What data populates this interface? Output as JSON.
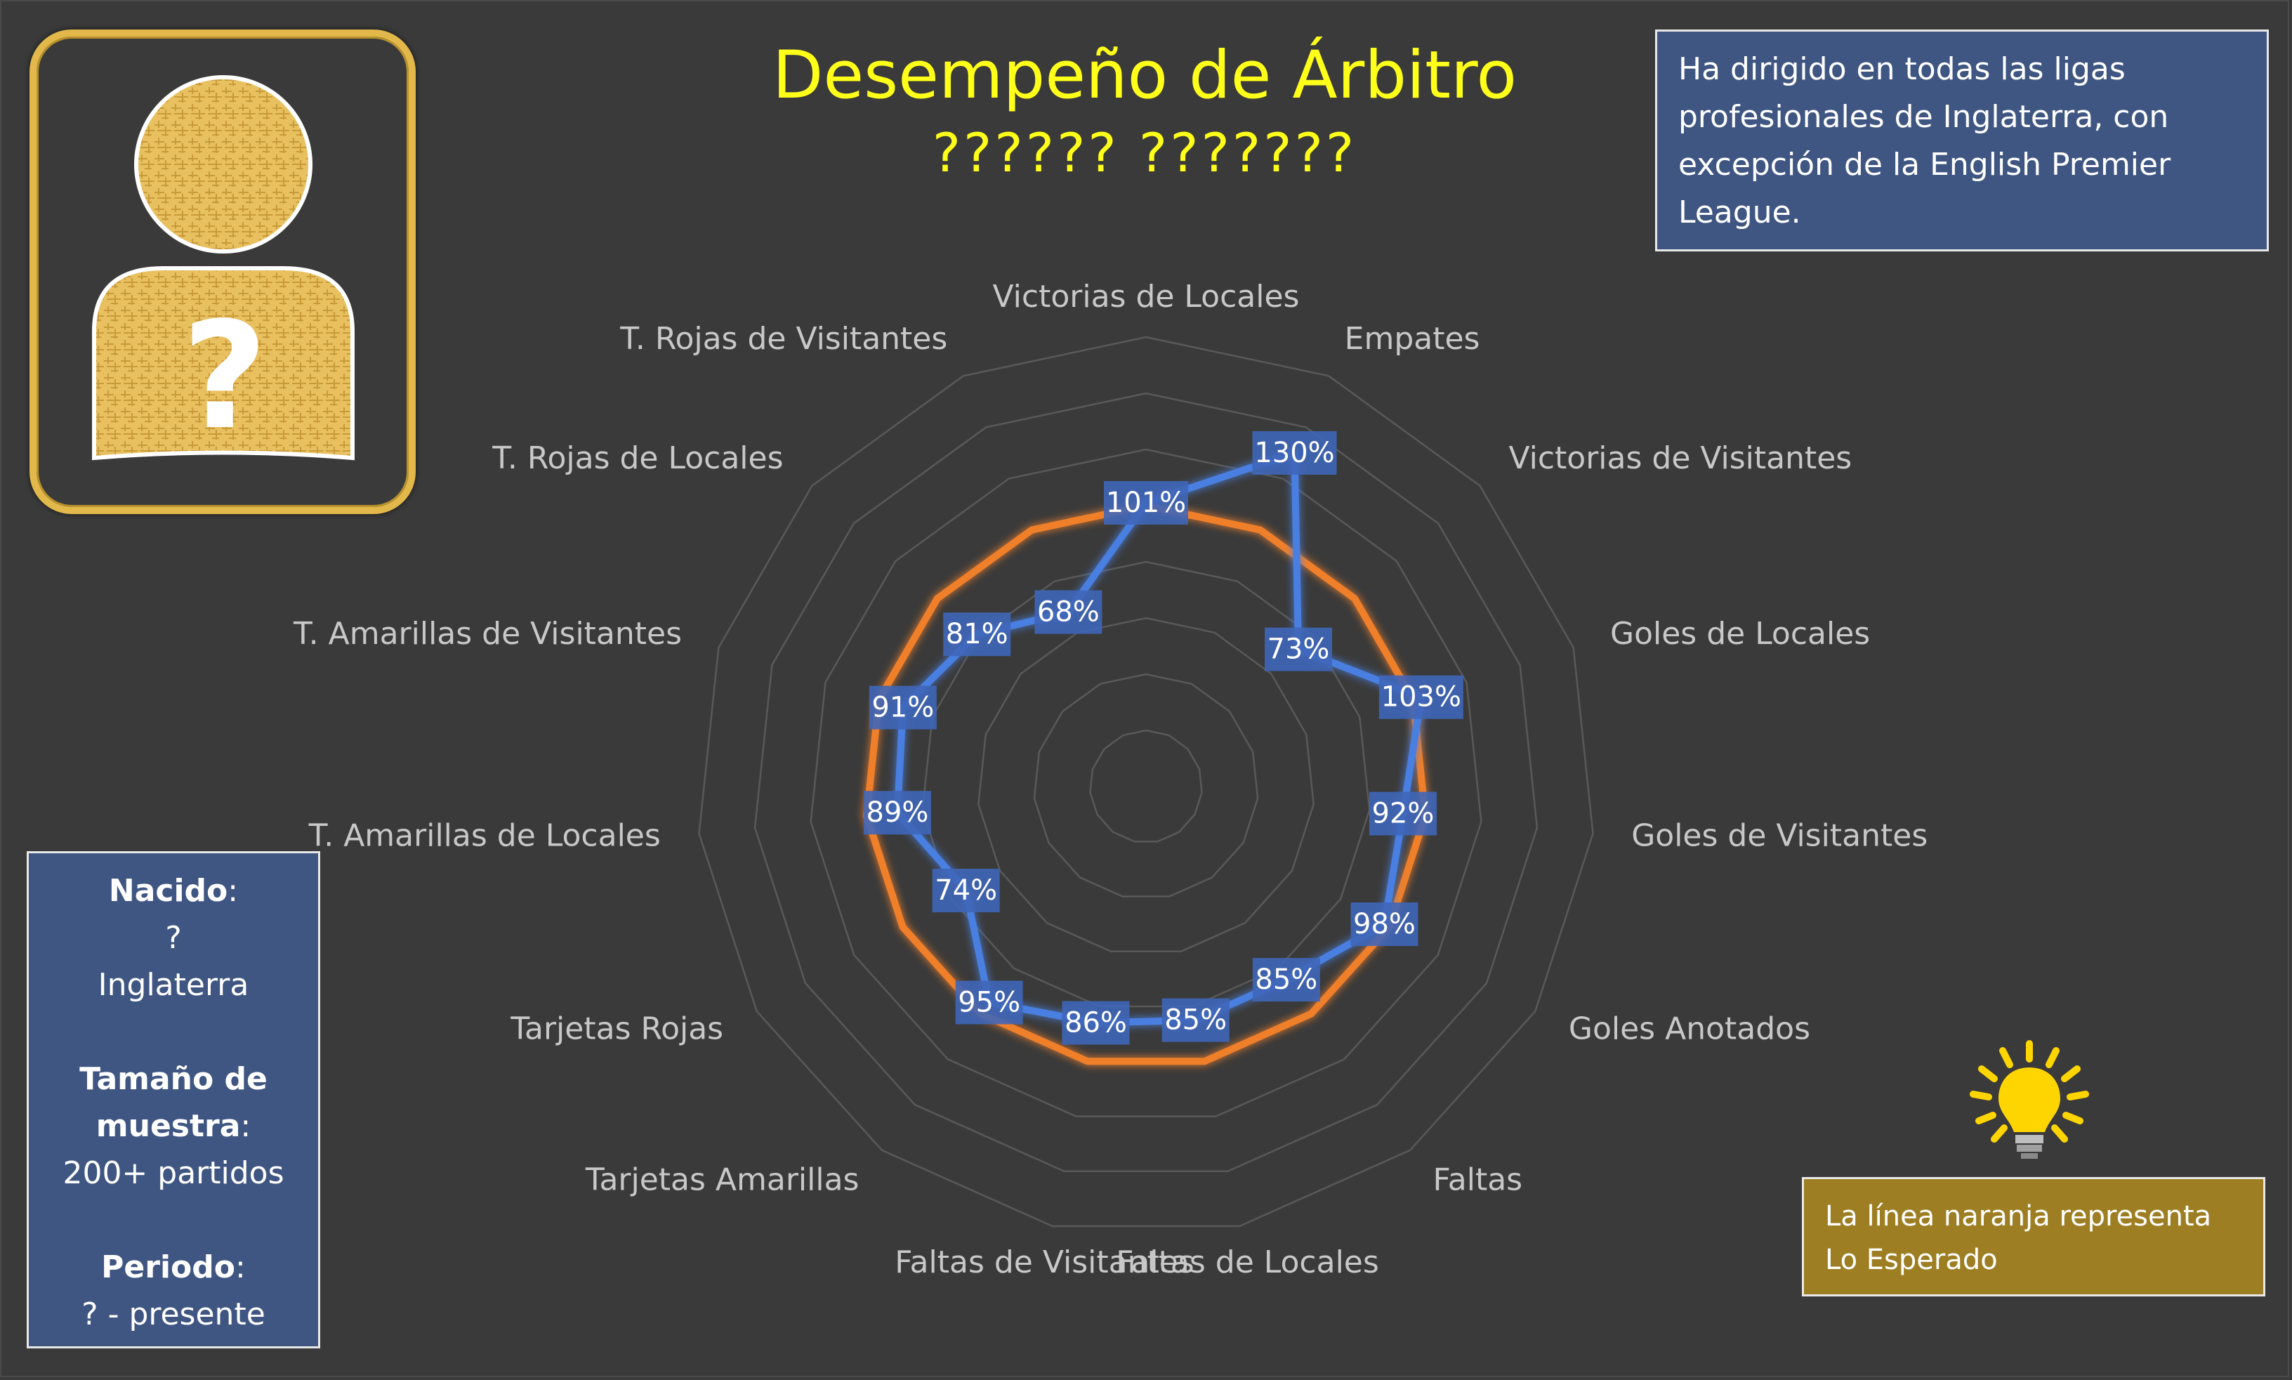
{
  "header": {
    "title": "Desempeño de Árbitro",
    "subtitle": "?????? ???????"
  },
  "note": "Ha dirigido en todas las ligas profesionales de Inglaterra, con excepción de la English Premier League.",
  "info": {
    "born_label": "Nacido",
    "born_value": "?",
    "country": "Inglaterra",
    "sample_label_1": "Tamaño de",
    "sample_label_2": "muestra",
    "sample_value": "200+ partidos",
    "period_label": "Periodo",
    "period_value": "? - presente"
  },
  "legend": {
    "line1": "La línea naranja representa",
    "line2": "Lo Esperado"
  },
  "icons": {
    "avatar": "unknown-person-icon",
    "hint": "lightbulb-icon"
  },
  "colors": {
    "actual": "#4a7fe0",
    "expected": "#f07f2c",
    "title": "#ffff19",
    "panel": "#3f5682",
    "legend_panel": "#9e7e22"
  },
  "chart_data": {
    "type": "radar",
    "categories": [
      "Victorias de Locales",
      "Empates",
      "Victorias de Visitantes",
      "Goles de Locales",
      "Goles de Visitantes",
      "Goles Anotados",
      "Faltas",
      "Faltas de Locales",
      "Faltas de Visitantes",
      "Tarjetas Amarillas",
      "Tarjetas Rojas",
      "T. Amarillas de Locales",
      "T. Amarillas de Visitantes",
      "T. Rojas de Locales",
      "T. Rojas de Visitantes"
    ],
    "series": [
      {
        "values": [
          101,
          130,
          73,
          103,
          92,
          98,
          85,
          85,
          86,
          95,
          74,
          89,
          91,
          81,
          68
        ],
        "labels": [
          "101%",
          "130%",
          "73%",
          "103%",
          "92%",
          "98%",
          "85%",
          "85%",
          "86%",
          "95%",
          "74%",
          "89%",
          "91%",
          "81%",
          "68%"
        ]
      },
      {
        "values": [
          100,
          100,
          100,
          100,
          100,
          100,
          100,
          100,
          100,
          100,
          100,
          100,
          100,
          100,
          100
        ]
      }
    ],
    "rlim": [
      0,
      160
    ],
    "grid": true
  }
}
